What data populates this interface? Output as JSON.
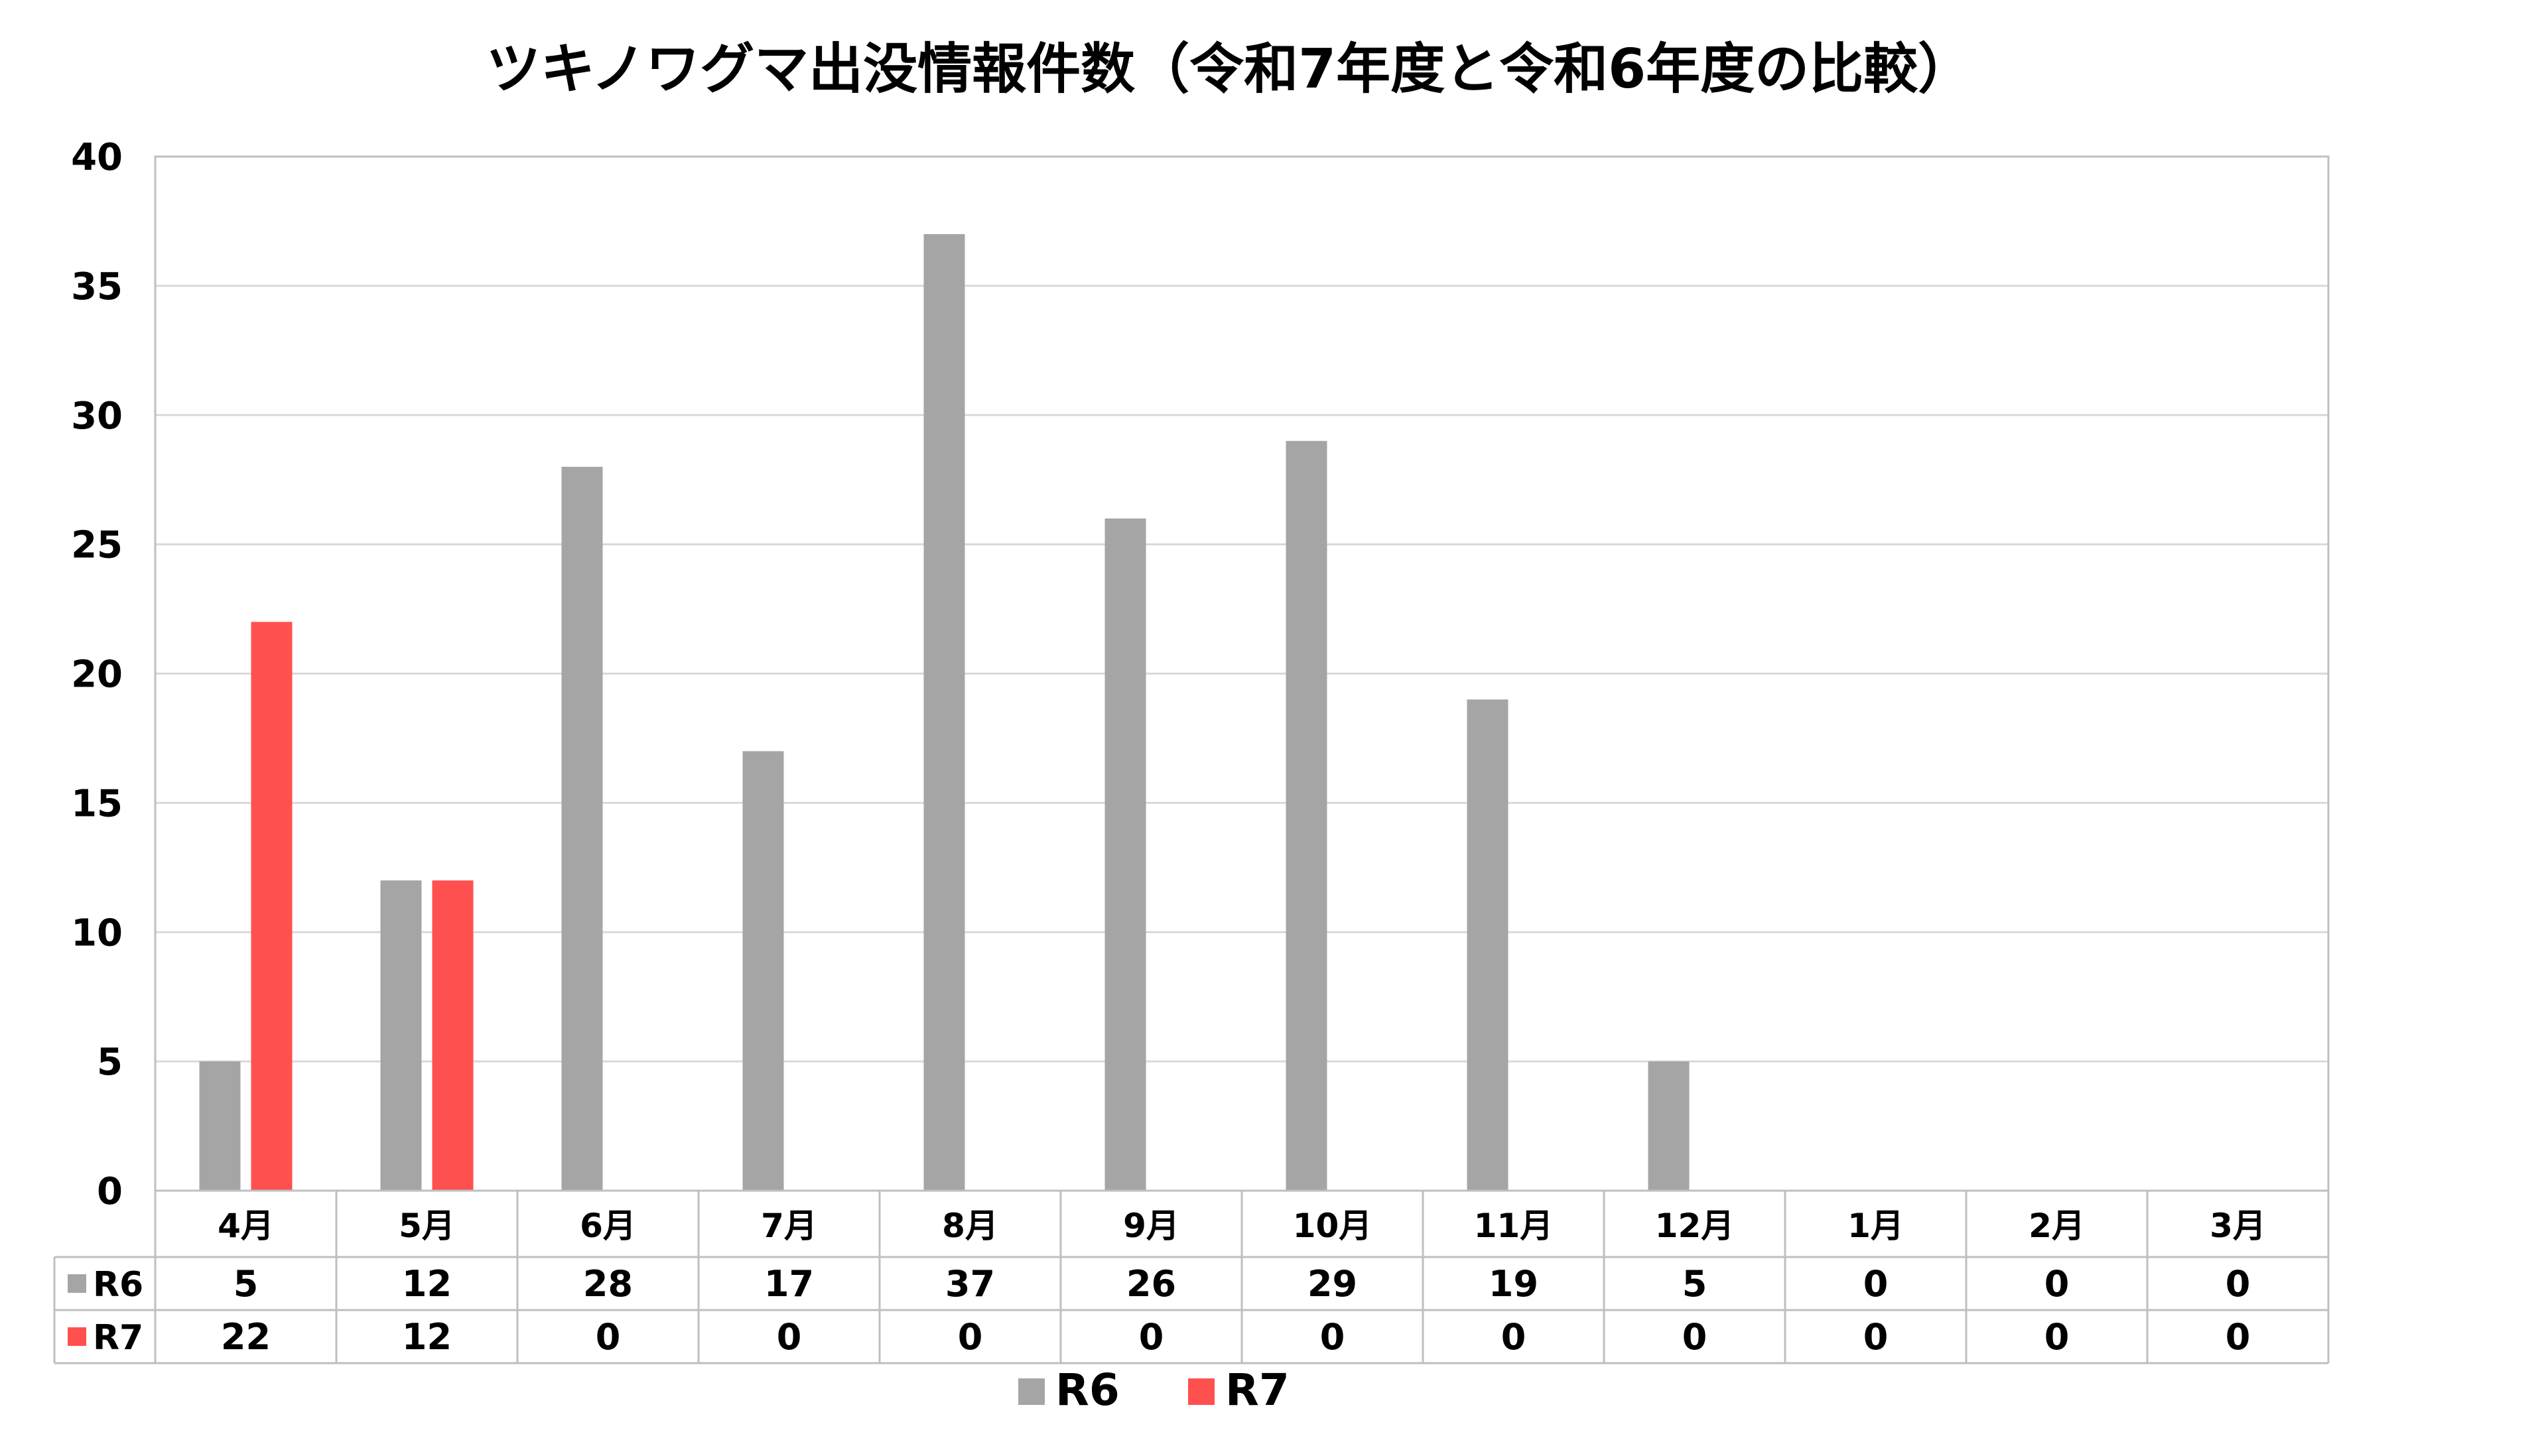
{
  "chart_data": {
    "type": "bar",
    "title": "ツキノワグマ出没情報件数（令和7年度と令和6年度の比較）",
    "categories": [
      "4月",
      "5月",
      "6月",
      "7月",
      "8月",
      "9月",
      "10月",
      "11月",
      "12月",
      "1月",
      "2月",
      "3月"
    ],
    "series": [
      {
        "name": "R6",
        "color": "#a5a5a5",
        "values": [
          5,
          12,
          28,
          17,
          37,
          26,
          29,
          19,
          5,
          0,
          0,
          0
        ]
      },
      {
        "name": "R7",
        "color": "#ff5050",
        "values": [
          22,
          12,
          0,
          0,
          0,
          0,
          0,
          0,
          0,
          0,
          0,
          0
        ]
      }
    ],
    "ylim": [
      0,
      40
    ],
    "yticks": [
      0,
      5,
      10,
      15,
      20,
      25,
      30,
      35,
      40
    ],
    "grid": true,
    "legend": "bottom-center",
    "data_table": true
  }
}
